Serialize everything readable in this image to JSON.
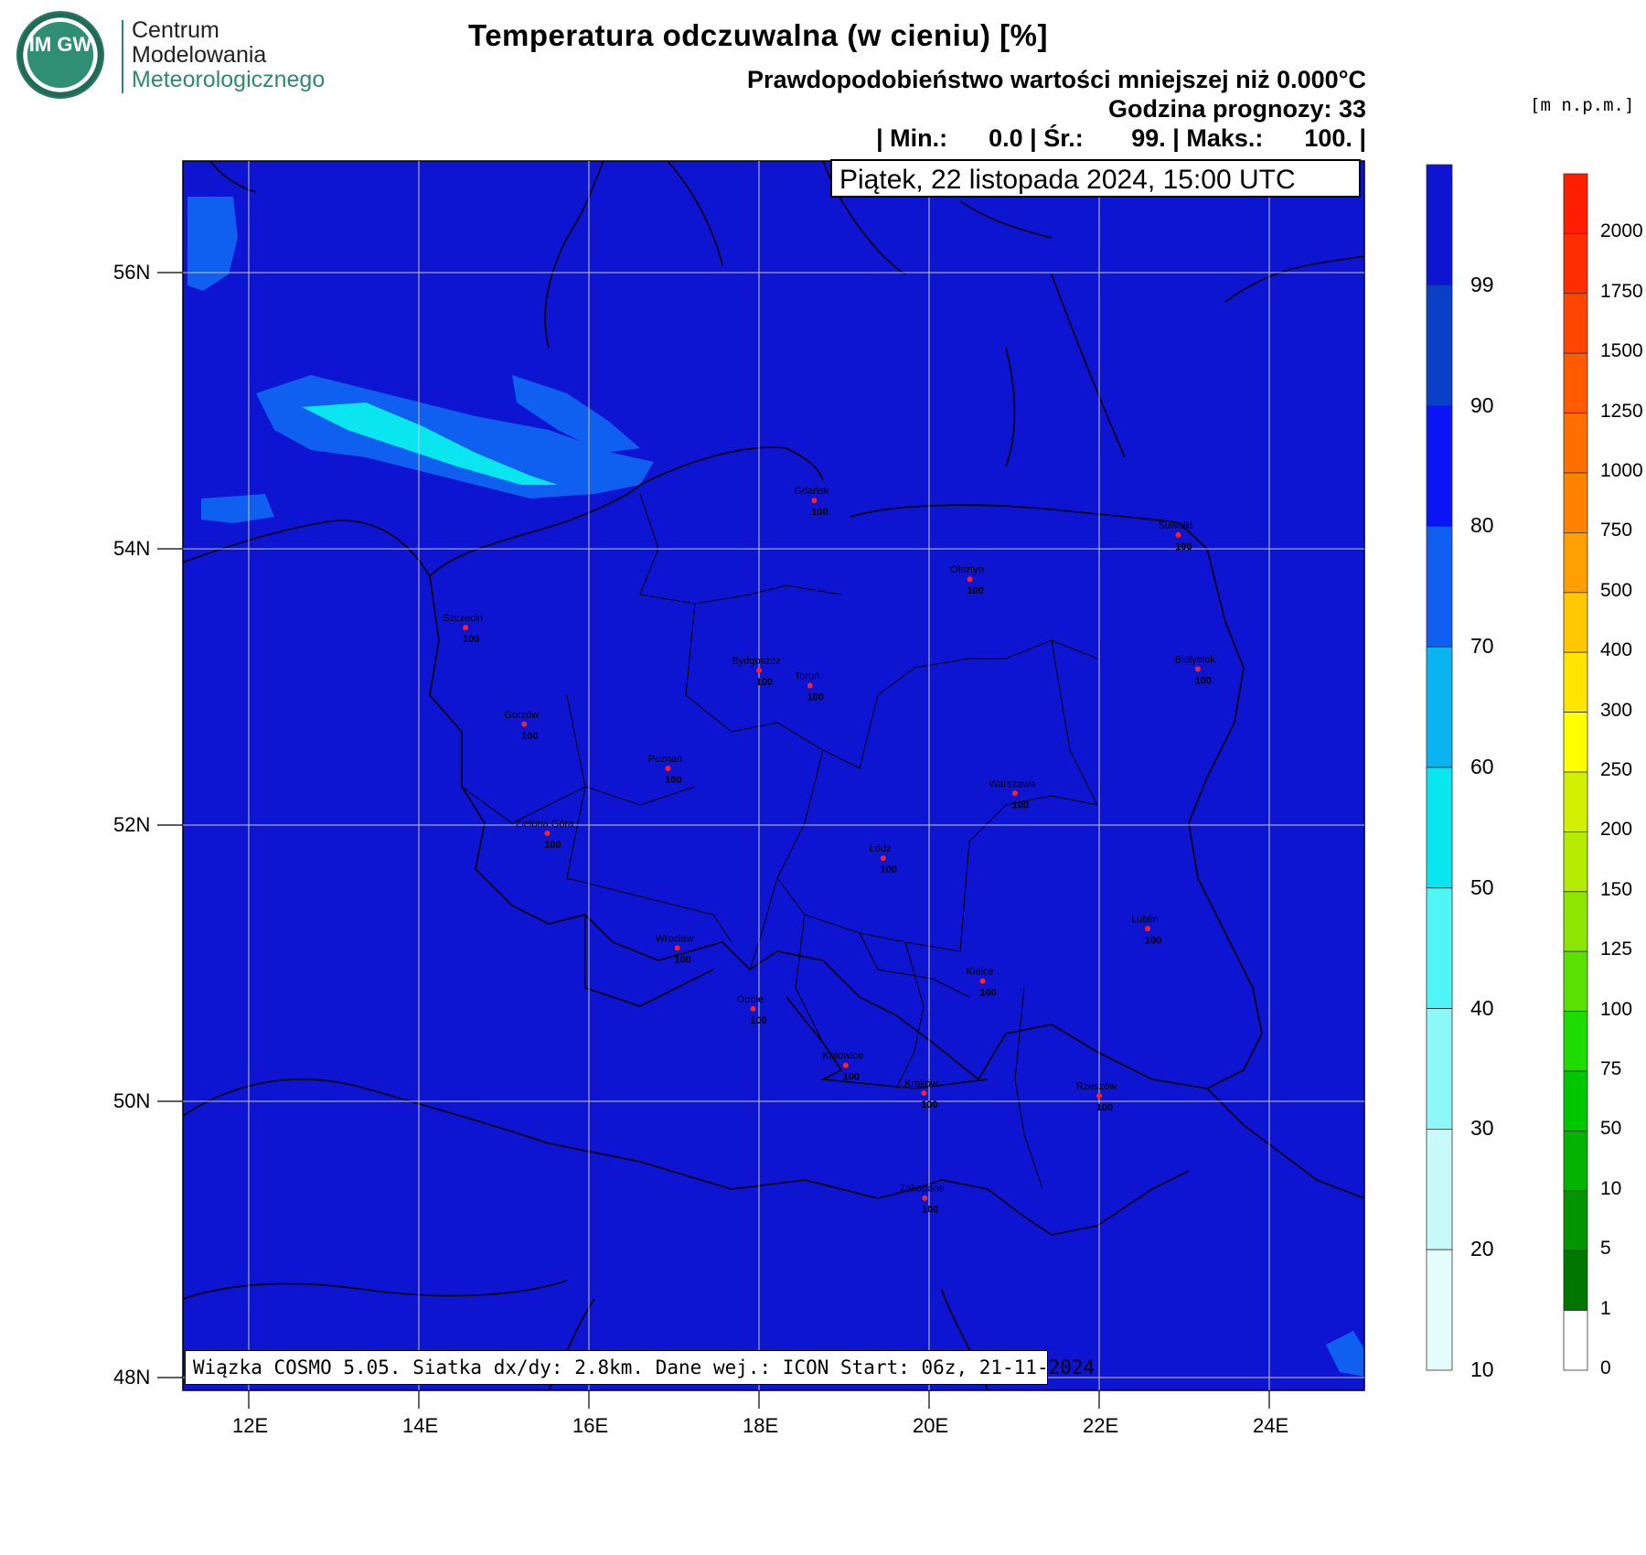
{
  "header": {
    "logo_letters": "IM GW",
    "logo_line1": "Centrum",
    "logo_line2": "Modelowania",
    "logo_line3": "Meteorologicznego",
    "title": "Temperatura odczuwalna (w cieniu) [%]",
    "subtitle1": "Prawdopodobieństwo wartości mniejszej niż 0.000°C",
    "subtitle2": "Godzina prognozy: 33",
    "subtitle3": "| Min.:      0.0 | Śr.:       99. | Maks.:      100. |",
    "units_label": "[m n.p.m.]"
  },
  "map": {
    "date_label": "Piątek, 22 listopada 2024, 15:00 UTC",
    "info_label": "Wiązka COSMO 5.05. Siatka dx/dy: 2.8km. Dane wej.: ICON Start: 06z, 21-11-2024",
    "background_color": "#0d14d2",
    "lat_ticks": [
      "56N",
      "54N",
      "52N",
      "50N",
      "48N"
    ],
    "lon_ticks": [
      "12E",
      "14E",
      "16E",
      "18E",
      "20E",
      "22E",
      "24E"
    ],
    "cities": [
      {
        "name": "Gdańsk",
        "value": "100",
        "lon": 18.65,
        "lat": 54.35
      },
      {
        "name": "Suwałki",
        "value": "100",
        "lon": 22.93,
        "lat": 54.1
      },
      {
        "name": "Olsztyn",
        "value": "100",
        "lon": 20.48,
        "lat": 53.78
      },
      {
        "name": "Szczecin",
        "value": "100",
        "lon": 14.55,
        "lat": 53.43
      },
      {
        "name": "Bydgoszcz",
        "value": "100",
        "lon": 18.0,
        "lat": 53.12
      },
      {
        "name": "Toruń",
        "value": "100",
        "lon": 18.6,
        "lat": 53.01
      },
      {
        "name": "Białystok",
        "value": "100",
        "lon": 23.16,
        "lat": 53.13
      },
      {
        "name": "Gorzów",
        "value": "100",
        "lon": 15.24,
        "lat": 52.73
      },
      {
        "name": "Poznań",
        "value": "100",
        "lon": 16.93,
        "lat": 52.41
      },
      {
        "name": "Warszawa",
        "value": "100",
        "lon": 21.01,
        "lat": 52.23
      },
      {
        "name": "Zielona Góra",
        "value": "100",
        "lon": 15.51,
        "lat": 51.94
      },
      {
        "name": "Łódź",
        "value": "100",
        "lon": 19.46,
        "lat": 51.76
      },
      {
        "name": "Wrocław",
        "value": "100",
        "lon": 17.04,
        "lat": 51.11
      },
      {
        "name": "Lublin",
        "value": "100",
        "lon": 22.57,
        "lat": 51.25
      },
      {
        "name": "Kielce",
        "value": "100",
        "lon": 20.63,
        "lat": 50.87
      },
      {
        "name": "Opole",
        "value": "100",
        "lon": 17.93,
        "lat": 50.67
      },
      {
        "name": "Katowice",
        "value": "100",
        "lon": 19.02,
        "lat": 50.26
      },
      {
        "name": "Kraków",
        "value": "100",
        "lon": 19.94,
        "lat": 50.06
      },
      {
        "name": "Rzeszów",
        "value": "100",
        "lon": 22.0,
        "lat": 50.04
      },
      {
        "name": "Zakopane",
        "value": "100",
        "lon": 19.95,
        "lat": 49.3
      }
    ]
  },
  "probability_scale": {
    "labels": [
      "99",
      "90",
      "80",
      "70",
      "60",
      "50",
      "40",
      "30",
      "20",
      "10"
    ],
    "colors": [
      "#0d14d2",
      "#0a3fc8",
      "#0a14f5",
      "#0f5ff0",
      "#0ab4f0",
      "#0ae6f0",
      "#50f5f5",
      "#8ef8f8",
      "#c8fafa",
      "#e4fcfc"
    ]
  },
  "elevation_scale": {
    "labels": [
      "2000",
      "1750",
      "1500",
      "1250",
      "1000",
      "750",
      "500",
      "400",
      "300",
      "250",
      "200",
      "150",
      "125",
      "100",
      "75",
      "50",
      "10",
      "5",
      "1",
      "0"
    ],
    "colors": [
      "#ff1e00",
      "#ff2d00",
      "#ff4600",
      "#ff5a00",
      "#ff6e00",
      "#ff8200",
      "#ffa000",
      "#ffc800",
      "#ffe600",
      "#ffff00",
      "#d2f000",
      "#b4eb00",
      "#8ce600",
      "#5ae100",
      "#1edc00",
      "#00c800",
      "#00b400",
      "#009600",
      "#007800",
      "#ffffff"
    ]
  }
}
